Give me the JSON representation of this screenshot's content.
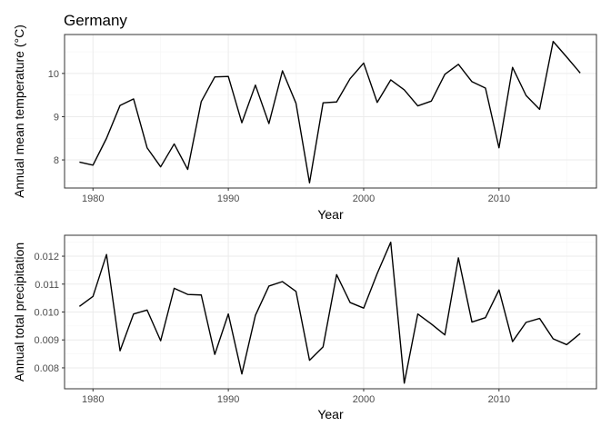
{
  "chart_data": [
    {
      "type": "line",
      "title": "Germany",
      "xlabel": "Year",
      "ylabel": "Annual mean temperature (°C)",
      "grid": true,
      "xlim": [
        1977.9,
        2017.2
      ],
      "ylim": [
        7.35,
        10.9
      ],
      "xticks": [
        1980,
        1990,
        2000,
        2010
      ],
      "yticks": [
        8,
        9,
        10
      ],
      "x": [
        1979,
        1980,
        1981,
        1982,
        1983,
        1984,
        1985,
        1986,
        1987,
        1988,
        1989,
        1990,
        1991,
        1992,
        1993,
        1994,
        1995,
        1996,
        1997,
        1998,
        1999,
        2000,
        2001,
        2002,
        2003,
        2004,
        2005,
        2006,
        2007,
        2008,
        2009,
        2010,
        2011,
        2012,
        2013,
        2014,
        2015,
        2016
      ],
      "series": [
        {
          "values": [
            7.95,
            7.88,
            8.5,
            9.26,
            9.41,
            8.28,
            7.84,
            8.37,
            7.78,
            9.35,
            9.92,
            9.93,
            8.86,
            9.73,
            8.84,
            10.06,
            9.31,
            7.47,
            9.32,
            9.34,
            9.88,
            10.24,
            9.33,
            9.85,
            9.62,
            9.25,
            9.36,
            9.98,
            10.21,
            9.81,
            9.66,
            8.28,
            10.14,
            9.49,
            9.17,
            10.74,
            10.38,
            10.01
          ]
        }
      ]
    },
    {
      "type": "line",
      "title": "",
      "xlabel": "Year",
      "ylabel": "Annual total precipitation",
      "grid": true,
      "xlim": [
        1977.9,
        2017.2
      ],
      "ylim": [
        0.00725,
        0.01275
      ],
      "xticks": [
        1980,
        1990,
        2000,
        2010
      ],
      "yticks": [
        0.008,
        0.009,
        0.01,
        0.011,
        0.012
      ],
      "ytick_labels": [
        "0.008",
        "0.009",
        "0.010",
        "0.011",
        "0.012"
      ],
      "x": [
        1979,
        1980,
        1981,
        1982,
        1983,
        1984,
        1985,
        1986,
        1987,
        1988,
        1989,
        1990,
        1991,
        1992,
        1993,
        1994,
        1995,
        1996,
        1997,
        1998,
        1999,
        2000,
        2001,
        2002,
        2003,
        2004,
        2005,
        2006,
        2007,
        2008,
        2009,
        2010,
        2011,
        2012,
        2013,
        2014,
        2015,
        2016
      ],
      "series": [
        {
          "values": [
            0.0102,
            0.01056,
            0.01206,
            0.00861,
            0.00993,
            0.01007,
            0.00897,
            0.01085,
            0.01063,
            0.01061,
            0.00848,
            0.00993,
            0.00778,
            0.00988,
            0.01093,
            0.01109,
            0.01074,
            0.00827,
            0.00875,
            0.01134,
            0.01034,
            0.01014,
            0.01138,
            0.0125,
            0.00745,
            0.00993,
            0.00957,
            0.00918,
            0.01194,
            0.00964,
            0.0098,
            0.01079,
            0.00894,
            0.00963,
            0.00977,
            0.00904,
            0.00883,
            0.00923
          ]
        }
      ]
    }
  ]
}
